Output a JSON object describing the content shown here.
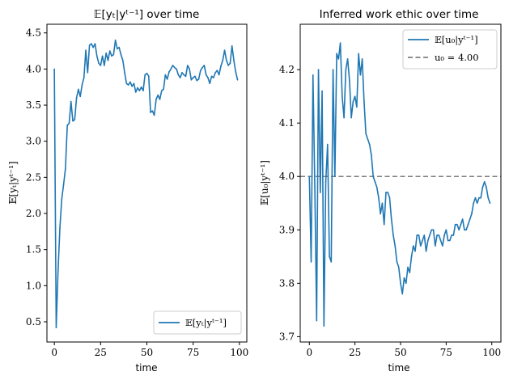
{
  "chart_data": [
    {
      "type": "line",
      "title": "𝔼[yₜ|yᵗ⁻¹] over time",
      "xlabel": "time",
      "ylabel": "𝔼[yₜ|yᵗ⁻¹]",
      "xlim": [
        -4,
        104
      ],
      "ylim": [
        0.22,
        4.62
      ],
      "xticks": [
        0,
        25,
        50,
        75,
        100
      ],
      "yticks": [
        0.5,
        1.0,
        1.5,
        2.0,
        2.5,
        3.0,
        3.5,
        4.0,
        4.5
      ],
      "legend_position": "bottom-right",
      "series": [
        {
          "name": "𝔼[yₜ|yᵗ⁻¹]",
          "color": "#1f77b4",
          "x": [
            0,
            1,
            2,
            3,
            4,
            5,
            6,
            7,
            8,
            9,
            10,
            11,
            12,
            13,
            14,
            15,
            16,
            17,
            18,
            19,
            20,
            21,
            22,
            23,
            24,
            25,
            26,
            27,
            28,
            29,
            30,
            31,
            32,
            33,
            34,
            35,
            36,
            37,
            38,
            39,
            40,
            41,
            42,
            43,
            44,
            45,
            46,
            47,
            48,
            49,
            50,
            51,
            52,
            53,
            54,
            55,
            56,
            57,
            58,
            59,
            60,
            61,
            62,
            63,
            64,
            65,
            66,
            67,
            68,
            69,
            70,
            71,
            72,
            73,
            74,
            75,
            76,
            77,
            78,
            79,
            80,
            81,
            82,
            83,
            84,
            85,
            86,
            87,
            88,
            89,
            90,
            91,
            92,
            93,
            94,
            95,
            96,
            97,
            98,
            99
          ],
          "values": [
            4.0,
            0.42,
            1.2,
            1.8,
            2.2,
            2.4,
            2.62,
            3.22,
            3.25,
            3.55,
            3.28,
            3.3,
            3.6,
            3.72,
            3.62,
            3.78,
            3.88,
            4.26,
            3.95,
            4.33,
            4.35,
            4.3,
            4.35,
            4.18,
            4.08,
            4.05,
            4.18,
            4.05,
            4.22,
            4.12,
            4.25,
            4.18,
            4.2,
            4.4,
            4.28,
            4.3,
            4.2,
            4.12,
            3.95,
            3.8,
            3.78,
            3.82,
            3.76,
            3.8,
            3.68,
            3.74,
            3.7,
            3.75,
            3.7,
            3.92,
            3.94,
            3.9,
            3.4,
            3.42,
            3.36,
            3.58,
            3.64,
            3.58,
            3.7,
            3.72,
            3.92,
            3.86,
            3.96,
            4.0,
            4.05,
            4.02,
            4.0,
            3.92,
            3.88,
            3.95,
            3.92,
            3.9,
            4.05,
            4.0,
            3.85,
            3.88,
            3.9,
            3.84,
            3.86,
            3.98,
            4.02,
            4.05,
            3.92,
            3.88,
            3.8,
            3.9,
            3.88,
            3.95,
            3.98,
            3.92,
            4.04,
            4.12,
            4.26,
            4.12,
            4.05,
            4.08,
            4.32,
            4.12,
            3.96,
            3.85
          ]
        }
      ]
    },
    {
      "type": "line",
      "title": "Inferred work ethic over time",
      "xlabel": "time",
      "ylabel": "𝔼[u₀|yᵗ⁻¹]",
      "xlim": [
        -5,
        105
      ],
      "ylim": [
        3.69,
        4.285
      ],
      "xticks": [
        0,
        25,
        50,
        75,
        100
      ],
      "yticks": [
        3.7,
        3.8,
        3.9,
        4.0,
        4.1,
        4.2
      ],
      "legend_position": "top-right",
      "reference_line": {
        "label": "u₀ = 4.00",
        "y": 4.0,
        "color": "#7f7f7f",
        "style": "dashed"
      },
      "series": [
        {
          "name": "𝔼[u₀|yᵗ⁻¹]",
          "color": "#1f77b4",
          "x": [
            0,
            1,
            2,
            3,
            4,
            5,
            6,
            7,
            8,
            9,
            10,
            11,
            12,
            13,
            14,
            15,
            16,
            17,
            18,
            19,
            20,
            21,
            22,
            23,
            24,
            25,
            26,
            27,
            28,
            29,
            30,
            31,
            32,
            33,
            34,
            35,
            36,
            37,
            38,
            39,
            40,
            41,
            42,
            43,
            44,
            45,
            46,
            47,
            48,
            49,
            50,
            51,
            52,
            53,
            54,
            55,
            56,
            57,
            58,
            59,
            60,
            61,
            62,
            63,
            64,
            65,
            66,
            67,
            68,
            69,
            70,
            71,
            72,
            73,
            74,
            75,
            76,
            77,
            78,
            79,
            80,
            81,
            82,
            83,
            84,
            85,
            86,
            87,
            88,
            89,
            90,
            91,
            92,
            93,
            94,
            95,
            96,
            97,
            98,
            99
          ],
          "values": [
            4.0,
            3.84,
            4.19,
            3.98,
            3.73,
            4.2,
            3.97,
            4.16,
            3.72,
            3.99,
            4.06,
            3.85,
            3.84,
            4.2,
            4.0,
            4.23,
            4.22,
            4.25,
            4.15,
            4.11,
            4.2,
            4.22,
            4.18,
            4.11,
            4.14,
            4.15,
            4.13,
            4.23,
            4.19,
            4.22,
            4.14,
            4.08,
            4.07,
            4.06,
            4.04,
            4.0,
            3.99,
            3.98,
            3.96,
            3.93,
            3.95,
            3.91,
            3.97,
            3.97,
            3.96,
            3.92,
            3.89,
            3.87,
            3.84,
            3.83,
            3.8,
            3.78,
            3.81,
            3.8,
            3.83,
            3.82,
            3.85,
            3.87,
            3.86,
            3.89,
            3.89,
            3.87,
            3.88,
            3.89,
            3.86,
            3.88,
            3.89,
            3.9,
            3.9,
            3.87,
            3.89,
            3.89,
            3.88,
            3.87,
            3.89,
            3.9,
            3.88,
            3.88,
            3.89,
            3.89,
            3.91,
            3.91,
            3.9,
            3.91,
            3.92,
            3.9,
            3.9,
            3.91,
            3.92,
            3.93,
            3.95,
            3.96,
            3.95,
            3.96,
            3.96,
            3.98,
            3.99,
            3.98,
            3.96,
            3.95
          ]
        }
      ]
    }
  ]
}
